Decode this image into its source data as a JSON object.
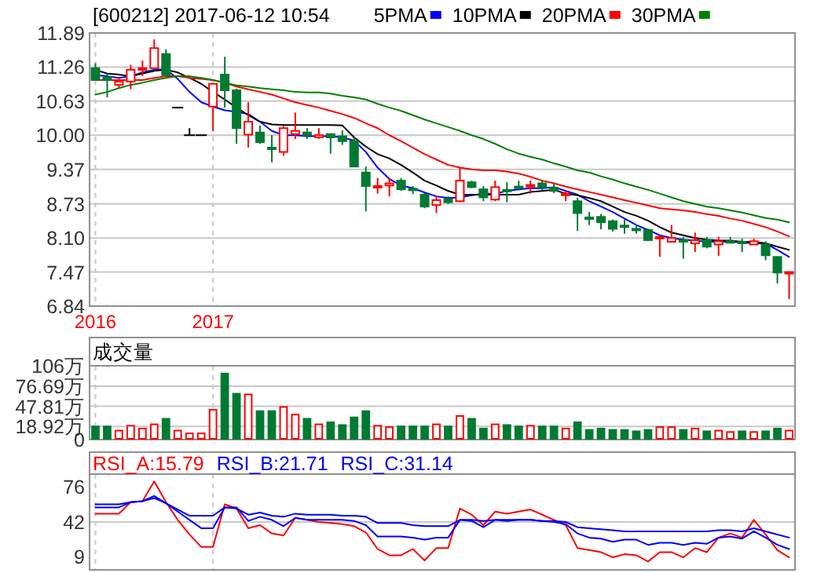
{
  "chart_data": [
    {
      "type": "candlestick",
      "title": "[600212] 2017-06-12 10:54",
      "legend": "top",
      "grid": true,
      "categories": [
        "2016",
        null,
        null,
        null,
        null,
        null,
        null,
        null,
        null,
        null,
        "2017",
        null,
        null,
        null,
        null,
        null,
        null,
        null,
        null,
        null,
        null,
        null,
        null,
        null,
        null,
        null,
        null,
        null,
        null,
        null,
        null,
        null,
        null,
        null,
        null,
        null,
        null,
        null,
        null,
        null,
        null,
        null,
        null,
        null,
        null,
        null,
        null,
        null,
        null,
        null,
        null,
        null,
        null,
        null,
        null,
        null,
        null,
        null,
        null,
        null
      ],
      "ylim": [
        6.84,
        11.89
      ],
      "yticks": [
        {
          "value": 11.89,
          "label": "11.89"
        },
        {
          "value": 11.26,
          "label": "11.26"
        },
        {
          "value": 10.63,
          "label": "10.63"
        },
        {
          "value": 10,
          "label": "10.00"
        },
        {
          "value": 9.37,
          "label": "9.37"
        },
        {
          "value": 8.73,
          "label": "8.73"
        },
        {
          "value": 8.1,
          "label": "8.10"
        },
        {
          "value": 7.47,
          "label": "7.47"
        },
        {
          "value": 6.84,
          "label": "6.84"
        }
      ],
      "ohlc": [
        [
          11.24,
          11.33,
          11.02,
          11.02
        ],
        [
          11.07,
          11.14,
          10.7,
          11.02
        ],
        [
          10.93,
          11.04,
          10.88,
          10.99
        ],
        [
          10.99,
          11.3,
          10.85,
          11.21
        ],
        [
          11.21,
          11.38,
          11.09,
          11.24
        ],
        [
          11.24,
          11.77,
          11.24,
          11.61
        ],
        [
          11.5,
          11.59,
          11.11,
          11.11
        ],
        [
          10.51,
          10.51,
          10.51,
          10.51
        ],
        [
          10.0,
          10.13,
          10.0,
          10.0
        ],
        [
          10.0,
          10.0,
          10.0,
          10.0
        ],
        [
          10.53,
          10.95,
          10.08,
          10.95
        ],
        [
          11.12,
          11.45,
          10.51,
          10.83
        ],
        [
          10.83,
          10.86,
          9.84,
          10.13
        ],
        [
          10.01,
          10.61,
          9.77,
          10.25
        ],
        [
          10.05,
          10.18,
          9.84,
          9.87
        ],
        [
          9.77,
          10.0,
          9.5,
          9.76
        ],
        [
          9.69,
          10.17,
          9.62,
          10.13
        ],
        [
          10.02,
          10.42,
          9.93,
          10.08
        ],
        [
          10.05,
          10.13,
          9.93,
          10.0
        ],
        [
          9.96,
          10.13,
          9.93,
          10.0
        ],
        [
          10.02,
          10.02,
          9.66,
          9.96
        ],
        [
          9.98,
          10.09,
          9.82,
          9.89
        ],
        [
          9.89,
          9.96,
          9.42,
          9.42
        ],
        [
          9.31,
          9.42,
          8.59,
          9.06
        ],
        [
          9.04,
          9.21,
          8.92,
          9.06
        ],
        [
          9.07,
          9.21,
          8.87,
          9.11
        ],
        [
          9.16,
          9.21,
          8.97,
          9.0
        ],
        [
          9.01,
          9.06,
          8.91,
          8.99
        ],
        [
          8.9,
          8.93,
          8.65,
          8.68
        ],
        [
          8.71,
          8.87,
          8.56,
          8.8
        ],
        [
          8.82,
          8.87,
          8.73,
          8.76
        ],
        [
          8.78,
          9.4,
          8.76,
          9.16
        ],
        [
          9.13,
          9.16,
          9.02,
          9.04
        ],
        [
          9.0,
          9.06,
          8.78,
          8.85
        ],
        [
          8.81,
          9.16,
          8.78,
          9.04
        ],
        [
          8.99,
          9.13,
          8.76,
          8.98
        ],
        [
          9.05,
          9.16,
          8.98,
          9.03
        ],
        [
          9.06,
          9.16,
          8.92,
          9.08
        ],
        [
          9.11,
          9.16,
          8.98,
          9.04
        ],
        [
          9.03,
          9.11,
          8.93,
          8.97
        ],
        [
          8.89,
          8.97,
          8.78,
          8.92
        ],
        [
          8.78,
          8.84,
          8.23,
          8.56
        ],
        [
          8.48,
          8.58,
          8.34,
          8.46
        ],
        [
          8.49,
          8.54,
          8.26,
          8.39
        ],
        [
          8.41,
          8.44,
          8.22,
          8.27
        ],
        [
          8.33,
          8.44,
          8.18,
          8.31
        ],
        [
          8.27,
          8.35,
          8.18,
          8.25
        ],
        [
          8.25,
          8.27,
          8.04,
          8.06
        ],
        [
          8.1,
          8.15,
          7.75,
          8.12
        ],
        [
          8.03,
          8.34,
          8.03,
          8.1
        ],
        [
          8.06,
          8.12,
          7.72,
          8.04
        ],
        [
          8.0,
          8.2,
          7.84,
          8.06
        ],
        [
          8.06,
          8.12,
          7.91,
          7.94
        ],
        [
          7.98,
          8.12,
          7.77,
          8.04
        ],
        [
          8.04,
          8.12,
          8.0,
          8.03
        ],
        [
          8.03,
          8.09,
          7.84,
          8.01
        ],
        [
          7.98,
          8.09,
          7.98,
          8.04
        ],
        [
          7.98,
          8.04,
          7.69,
          7.78
        ],
        [
          7.75,
          7.75,
          7.26,
          7.46
        ],
        [
          7.45,
          7.48,
          6.97,
          7.47
        ]
      ],
      "series": [
        {
          "name": "5PMA",
          "type": "line",
          "color": "#0000ff",
          "values": [
            11.11,
            11.09,
            11.06,
            11.09,
            11.16,
            11.21,
            11.22,
            11.04,
            10.8,
            10.61,
            10.53,
            10.46,
            10.43,
            10.39,
            10.25,
            10.08,
            10.0,
            10.0,
            9.98,
            9.98,
            9.98,
            9.96,
            9.9,
            9.69,
            9.4,
            9.19,
            9.07,
            9.02,
            8.94,
            8.87,
            8.84,
            8.85,
            8.89,
            8.92,
            8.92,
            8.97,
            9.0,
            9.02,
            9.02,
            9.04,
            8.97,
            8.9,
            8.78,
            8.68,
            8.58,
            8.46,
            8.34,
            8.25,
            8.15,
            8.1,
            8.07,
            8.05,
            8.03,
            8.03,
            8.03,
            8.02,
            8.0,
            8.0,
            7.88,
            7.75
          ]
        },
        {
          "name": "10PMA",
          "type": "line",
          "color": "#000000",
          "values": [
            11.21,
            11.14,
            11.12,
            11.09,
            11.14,
            11.19,
            11.21,
            11.16,
            11.06,
            10.95,
            10.8,
            10.66,
            10.51,
            10.37,
            10.25,
            10.2,
            10.19,
            10.19,
            10.19,
            10.19,
            10.19,
            10.18,
            9.96,
            9.79,
            9.65,
            9.57,
            9.45,
            9.31,
            9.16,
            9.07,
            8.97,
            8.9,
            8.9,
            8.9,
            8.9,
            8.9,
            8.9,
            8.95,
            8.97,
            8.99,
            8.92,
            8.89,
            8.84,
            8.78,
            8.68,
            8.58,
            8.51,
            8.42,
            8.3,
            8.2,
            8.15,
            8.1,
            8.07,
            8.05,
            8.05,
            8.03,
            8.03,
            8.0,
            7.94,
            7.88
          ]
        },
        {
          "name": "20PMA",
          "type": "line",
          "color": "#ff0000",
          "values": [
            11.02,
            11.02,
            11.02,
            11.02,
            11.02,
            11.06,
            11.09,
            11.09,
            11.06,
            11.04,
            11.02,
            10.97,
            10.9,
            10.85,
            10.8,
            10.75,
            10.68,
            10.61,
            10.56,
            10.51,
            10.45,
            10.39,
            10.32,
            10.22,
            10.13,
            10.0,
            9.89,
            9.77,
            9.65,
            9.55,
            9.45,
            9.4,
            9.37,
            9.35,
            9.35,
            9.33,
            9.29,
            9.23,
            9.16,
            9.11,
            9.05,
            9.0,
            8.95,
            8.9,
            8.85,
            8.8,
            8.75,
            8.7,
            8.65,
            8.63,
            8.61,
            8.58,
            8.54,
            8.51,
            8.46,
            8.42,
            8.36,
            8.3,
            8.22,
            8.13
          ]
        },
        {
          "name": "30PMA",
          "type": "line",
          "color": "#008000",
          "values": [
            10.75,
            10.8,
            10.87,
            10.93,
            10.97,
            11.02,
            11.06,
            11.09,
            11.09,
            11.06,
            11.02,
            10.97,
            10.92,
            10.9,
            10.87,
            10.85,
            10.83,
            10.8,
            10.79,
            10.79,
            10.77,
            10.73,
            10.7,
            10.66,
            10.58,
            10.51,
            10.45,
            10.37,
            10.29,
            10.22,
            10.15,
            10.08,
            10.0,
            9.93,
            9.84,
            9.74,
            9.66,
            9.6,
            9.55,
            9.48,
            9.42,
            9.35,
            9.31,
            9.24,
            9.18,
            9.11,
            9.05,
            8.99,
            8.92,
            8.85,
            8.78,
            8.73,
            8.68,
            8.65,
            8.61,
            8.57,
            8.52,
            8.47,
            8.44,
            8.39
          ]
        }
      ]
    },
    {
      "type": "bar",
      "title": "成交量",
      "grid": true,
      "tick_labels": "y",
      "categories": [
        null,
        null,
        null,
        null,
        null,
        null,
        null,
        null,
        null,
        null,
        null,
        null,
        null,
        null,
        null,
        null,
        null,
        null,
        null,
        null,
        null,
        null,
        null,
        null,
        null,
        null,
        null,
        null,
        null,
        null,
        null,
        null,
        null,
        null,
        null,
        null,
        null,
        null,
        null,
        null,
        null,
        null,
        null,
        null,
        null,
        null,
        null,
        null,
        null,
        null,
        null,
        null,
        null,
        null,
        null,
        null,
        null,
        null,
        null,
        null
      ],
      "ylim": [
        0,
        106
      ],
      "yticks": [
        {
          "value": 0,
          "label": "0"
        },
        {
          "value": 18.92,
          "label": "18.92万"
        },
        {
          "value": 47.81,
          "label": "47.81万"
        },
        {
          "value": 76.69,
          "label": "76.69万"
        },
        {
          "value": 106,
          "label": "106万"
        }
      ],
      "values": [
        20,
        20,
        14,
        21,
        17,
        23,
        31,
        14,
        10,
        10,
        44,
        96,
        67,
        66,
        42,
        42,
        48,
        37,
        31,
        23,
        26,
        22,
        33,
        42,
        21,
        19,
        20,
        20,
        20,
        23,
        20,
        35,
        31,
        17,
        23,
        22,
        20,
        21,
        20,
        20,
        17,
        26,
        15,
        17,
        15,
        15,
        13,
        15,
        19,
        19,
        15,
        17,
        13,
        14,
        12,
        13,
        12,
        13,
        17,
        14
      ],
      "colors": [
        "#007a33",
        "#007a33",
        "#ff0000",
        "#ff0000",
        "#ff0000",
        "#ff0000",
        "#007a33",
        "#ff0000",
        "#ff0000",
        "#ff0000",
        "#ff0000",
        "#007a33",
        "#007a33",
        "#ff0000",
        "#007a33",
        "#007a33",
        "#ff0000",
        "#ff0000",
        "#007a33",
        "#ff0000",
        "#007a33",
        "#007a33",
        "#007a33",
        "#007a33",
        "#ff0000",
        "#ff0000",
        "#007a33",
        "#007a33",
        "#007a33",
        "#ff0000",
        "#007a33",
        "#ff0000",
        "#007a33",
        "#007a33",
        "#ff0000",
        "#007a33",
        "#007a33",
        "#ff0000",
        "#007a33",
        "#007a33",
        "#ff0000",
        "#007a33",
        "#007a33",
        "#007a33",
        "#007a33",
        "#007a33",
        "#007a33",
        "#007a33",
        "#ff0000",
        "#ff0000",
        "#007a33",
        "#ff0000",
        "#007a33",
        "#ff0000",
        "#ff0000",
        "#007a33",
        "#ff0000",
        "#007a33",
        "#007a33",
        "#ff0000"
      ]
    },
    {
      "type": "line",
      "legend": "top left",
      "grid": "x",
      "tick_labels": "y",
      "categories": [
        null,
        null,
        null,
        null,
        null,
        null,
        null,
        null,
        null,
        null,
        null,
        null,
        null,
        null,
        null,
        null,
        null,
        null,
        null,
        null,
        null,
        null,
        null,
        null,
        null,
        null,
        null,
        null,
        null,
        null,
        null,
        null,
        null,
        null,
        null,
        null,
        null,
        null,
        null,
        null,
        null,
        null,
        null,
        null,
        null,
        null,
        null,
        null,
        null,
        null,
        null,
        null,
        null,
        null,
        null,
        null,
        null,
        null,
        null,
        null
      ],
      "ylim": [
        -4,
        88
      ],
      "yticks": [
        9,
        42,
        76
      ],
      "ref_lines": [
        {
          "axis": "y",
          "value": 42,
          "color": "#c8c8c8"
        }
      ],
      "series": [
        {
          "name": "RSI_A:15.79",
          "color": "#ff0000",
          "values": [
            50,
            50,
            50,
            61,
            62,
            81,
            61,
            44,
            30,
            18,
            18,
            59,
            55,
            36,
            39,
            31,
            29,
            46,
            44,
            42,
            41,
            40,
            38,
            32,
            16,
            10,
            10,
            16,
            5,
            17,
            17,
            55,
            49,
            39,
            52,
            50,
            52,
            54,
            49,
            44,
            39,
            17,
            15,
            13,
            8,
            11,
            10,
            4,
            13,
            13,
            8,
            17,
            13,
            27,
            31,
            27,
            44,
            30,
            15,
            8
          ]
        },
        {
          "name": "RSI_B:21.71",
          "color": "#0000ff",
          "values": [
            56,
            56,
            56,
            61,
            62,
            67,
            60,
            52,
            44,
            36,
            36,
            56,
            56,
            43,
            47,
            44,
            38,
            46,
            44,
            44,
            44,
            44,
            43,
            39,
            28,
            28,
            28,
            27,
            25,
            27,
            27,
            44,
            43,
            37,
            44,
            43,
            44,
            44,
            43,
            42,
            40,
            31,
            27,
            26,
            23,
            25,
            25,
            20,
            22,
            22,
            20,
            22,
            21,
            27,
            28,
            26,
            33,
            27,
            20,
            16
          ]
        },
        {
          "name": "RSI_C:31.14",
          "color": "#0000f0",
          "values": [
            59,
            59,
            59,
            61,
            62,
            65,
            60,
            54,
            48,
            48,
            48,
            56,
            55,
            49,
            51,
            48,
            47,
            50,
            49,
            49,
            49,
            48,
            48,
            47,
            41,
            41,
            41,
            39,
            38,
            38,
            38,
            44,
            44,
            43,
            44,
            44,
            44,
            44,
            43,
            43,
            42,
            37,
            36,
            35,
            34,
            33,
            33,
            33,
            33,
            33,
            33,
            33,
            33,
            34,
            34,
            33,
            36,
            33,
            30,
            27
          ]
        }
      ]
    }
  ]
}
